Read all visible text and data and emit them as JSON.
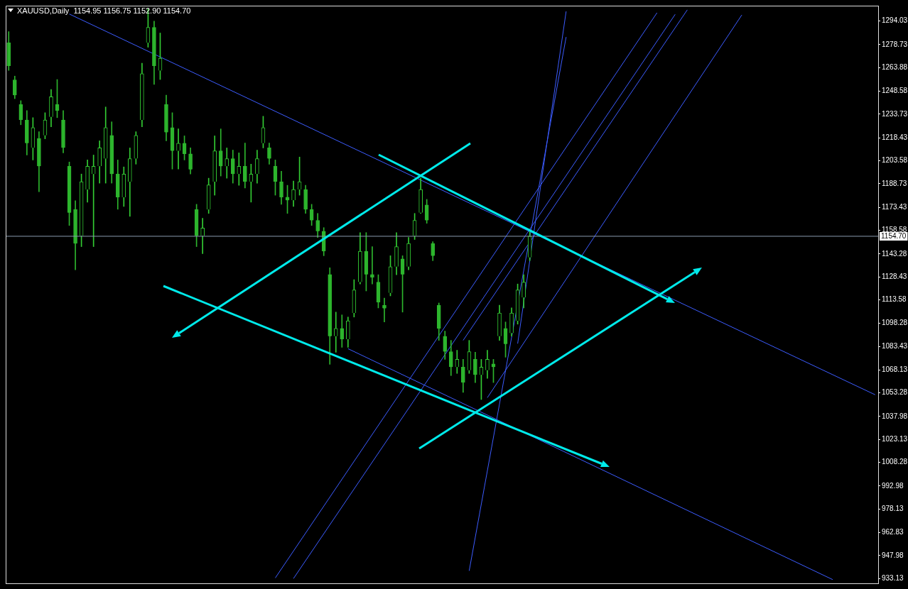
{
  "chart_data": {
    "type": "candlestick",
    "title": "XAUUSD,Daily  1154.95 1156.75 1152.90 1154.70",
    "colors": [
      "#2db52d",
      "#2db52d",
      "#2db52d",
      "#2db52d",
      "#33cc33",
      "#2db52d",
      "#33cc33",
      "#33cc33",
      "#2db52d",
      "#2db52d",
      "#2db52d",
      "#2db52d",
      "#33cc33",
      "#33cc33",
      "#33cc33",
      "#33cc33",
      "#33cc33",
      "#2db52d",
      "#2db52d",
      "#33cc33",
      "#33cc33",
      "#33cc33",
      "#33cc33",
      "#33cc33",
      "#2db52d",
      "#33cc33",
      "#2db52d",
      "#2db52d",
      "#33cc33",
      "#2db52d",
      "#2db52d",
      "#2db52d",
      "#33cc33",
      "#33cc33",
      "#33cc33",
      "#2db52d",
      "#33cc33",
      "#2db52d",
      "#33cc33",
      "#2db52d",
      "#33cc33",
      "#33cc33",
      "#33cc33",
      "#2db52d",
      "#2db52d",
      "#2db52d",
      "#2db52d",
      "#33cc33",
      "#33cc33",
      "#2db52d",
      "#2db52d",
      "#2db52d",
      "#2db52d",
      "#2db52d",
      "#33cc33",
      "#2db52d",
      "#33cc33",
      "#33cc33",
      "#33cc33",
      "#2db52d",
      "#2db52d",
      "#2db52d",
      "#2db52d",
      "#33cc33",
      "#33cc33",
      "#2db52d",
      "#33cc33",
      "#33cc33",
      "#33cc33",
      "#2db52d",
      "#2db52d",
      "#2db52d",
      "#2db52d",
      "#2db52d",
      "#33cc33",
      "#2db52d",
      "#33cc33",
      "#2db52d",
      "#33cc33",
      "#33cc33",
      "#2db52d",
      "#33cc33",
      "#2db52d",
      "#33cc33",
      "#33cc33",
      "#33cc33",
      "#33cc33",
      null,
      null,
      null,
      null,
      null,
      null,
      null,
      null,
      null,
      null,
      null,
      null,
      null,
      null,
      null,
      null,
      null,
      null,
      null,
      null,
      null,
      null,
      null,
      null,
      null,
      null,
      null,
      null,
      null,
      null,
      null,
      null,
      null,
      null,
      null,
      null,
      null,
      null,
      null,
      null,
      null,
      null,
      null,
      null,
      null,
      null,
      null,
      null,
      null,
      null,
      null,
      null,
      null,
      null,
      null,
      null,
      null
    ],
    "tick_labels": "y",
    "categories": [
      null,
      null,
      null,
      null,
      null,
      null,
      null,
      null,
      null,
      null,
      null,
      null,
      null,
      null,
      null,
      null,
      null,
      null,
      null,
      null,
      null,
      null,
      null,
      null,
      null,
      null,
      null,
      null,
      null,
      null,
      null,
      null,
      null,
      null,
      null,
      null,
      null,
      null,
      null,
      null,
      null,
      null,
      null,
      null,
      null,
      null,
      null,
      null,
      null,
      null,
      null,
      null,
      null,
      null,
      null,
      null,
      null,
      null,
      null,
      null,
      null,
      null,
      null,
      null,
      null,
      null,
      null,
      null,
      null,
      null,
      null,
      null,
      null,
      null,
      null,
      null,
      null,
      null,
      null,
      null,
      null,
      null,
      null,
      null,
      null,
      null,
      null,
      null,
      null,
      null,
      null,
      null,
      null,
      null,
      null,
      null,
      null,
      null,
      null,
      null,
      null,
      null,
      null,
      null,
      null,
      null,
      null,
      null,
      null,
      null,
      null,
      null,
      null,
      null,
      null,
      null,
      null,
      null,
      null,
      null,
      null,
      null,
      null,
      null,
      null,
      null,
      null,
      null,
      null,
      null,
      null,
      null,
      null,
      null,
      null,
      null,
      null,
      null,
      null,
      null,
      null,
      null,
      null,
      null
    ],
    "ohlc": [
      [
        1280,
        1287.2,
        1262.1,
        1265
      ],
      [
        1256,
        1258.4,
        1243.8,
        1246
      ],
      [
        1240,
        1242.5,
        1226.9,
        1230
      ],
      [
        1230,
        1236.1,
        1207.3,
        1215
      ],
      [
        1212,
        1231.5,
        1204.1,
        1225
      ],
      [
        1218,
        1222.4,
        1183.6,
        1200
      ],
      [
        1220,
        1234.7,
        1217.8,
        1230
      ],
      [
        1232,
        1249.8,
        1225.6,
        1245
      ],
      [
        1240,
        1256.2,
        1231.5,
        1236
      ],
      [
        1230,
        1236.1,
        1208.7,
        1212
      ],
      [
        1200,
        1202.8,
        1161.7,
        1170
      ],
      [
        1172,
        1177.7,
        1133.0,
        1150
      ],
      [
        1155,
        1195.0,
        1148.0,
        1190
      ],
      [
        1185,
        1204.1,
        1176.8,
        1200
      ],
      [
        1195,
        1207.3,
        1148.0,
        1200
      ],
      [
        1200,
        1216.5,
        1189.1,
        1212
      ],
      [
        1205,
        1238.4,
        1189.1,
        1225
      ],
      [
        1220,
        1228.8,
        1189.1,
        1195
      ],
      [
        1195,
        1204.1,
        1172.2,
        1180
      ],
      [
        1180,
        1199.6,
        1174.0,
        1195
      ],
      [
        1190,
        1211.9,
        1167.6,
        1205
      ],
      [
        1205,
        1222.4,
        1201.4,
        1220
      ],
      [
        1230,
        1266.7,
        1225.6,
        1260
      ],
      [
        1280,
        1302,
        1277.1,
        1290
      ],
      [
        1290,
        1294.0,
        1253.0,
        1265
      ],
      [
        1262,
        1286.3,
        1256.2,
        1270
      ],
      [
        1240,
        1246.1,
        1216.5,
        1222
      ],
      [
        1225,
        1234.7,
        1198.2,
        1210
      ],
      [
        1210,
        1224.2,
        1198.2,
        1215
      ],
      [
        1215,
        1219.7,
        1204.1,
        1208
      ],
      [
        1208,
        1211.9,
        1195.0,
        1198
      ],
      [
        1172,
        1175.4,
        1148.0,
        1155
      ],
      [
        1155,
        1166.3,
        1143.4,
        1160
      ],
      [
        1172,
        1192.3,
        1169.5,
        1188
      ],
      [
        1190,
        1219.7,
        1181.3,
        1210
      ],
      [
        1210,
        1224.2,
        1193.7,
        1200
      ],
      [
        1200,
        1211.9,
        1192.3,
        1205
      ],
      [
        1205,
        1210.5,
        1189.1,
        1195
      ],
      [
        1195,
        1208.7,
        1187.7,
        1200
      ],
      [
        1200,
        1215.1,
        1185.9,
        1190
      ],
      [
        1190,
        1201.4,
        1176.8,
        1195
      ],
      [
        1195,
        1210.5,
        1189.1,
        1205
      ],
      [
        1215,
        1232.4,
        1211.9,
        1225
      ],
      [
        1212,
        1215.1,
        1201.4,
        1205
      ],
      [
        1200,
        1204.1,
        1181.3,
        1190
      ],
      [
        1190,
        1196.8,
        1175.4,
        1180
      ],
      [
        1180,
        1187.7,
        1169.5,
        1178
      ],
      [
        1178,
        1190.5,
        1174.0,
        1185
      ],
      [
        1185,
        1206.0,
        1181.3,
        1190
      ],
      [
        1185,
        1187.7,
        1169.5,
        1172
      ],
      [
        1172,
        1175.4,
        1161.7,
        1165
      ],
      [
        1165,
        1169.5,
        1153.9,
        1158
      ],
      [
        1158,
        1160.3,
        1142.1,
        1145
      ],
      [
        1130,
        1134.3,
        1071.8,
        1090
      ],
      [
        1090,
        1105.6,
        1079.6,
        1095
      ],
      [
        1095,
        1103.8,
        1082.8,
        1088
      ],
      [
        1088,
        1102.4,
        1082.8,
        1100
      ],
      [
        1105,
        1126.6,
        1102.4,
        1120
      ],
      [
        1125,
        1157.1,
        1123.8,
        1145
      ],
      [
        1145,
        1157.1,
        1119.3,
        1130
      ],
      [
        1130,
        1148.0,
        1123.8,
        1128
      ],
      [
        1125,
        1129.8,
        1108.3,
        1112
      ],
      [
        1110,
        1114.7,
        1099.2,
        1108
      ],
      [
        1118,
        1142.1,
        1116.1,
        1135
      ],
      [
        1135,
        1157.1,
        1129.8,
        1148
      ],
      [
        1140,
        1142.1,
        1105.6,
        1130
      ],
      [
        1135,
        1153.9,
        1133.0,
        1150
      ],
      [
        1155,
        1169.5,
        1152.6,
        1165
      ],
      [
        1170,
        1192.3,
        1169.5,
        1185
      ],
      [
        1175,
        1178.6,
        1163.1,
        1165
      ],
      [
        1150,
        1151.2,
        1138.9,
        1142
      ],
      [
        1110,
        1111.5,
        1087.3,
        1095
      ],
      [
        1090,
        1093.3,
        1075.0,
        1080
      ],
      [
        1080,
        1087.3,
        1064.5,
        1070
      ],
      [
        1070,
        1080.9,
        1065.9,
        1075
      ],
      [
        1070,
        1075.0,
        1053.6,
        1060
      ],
      [
        1068,
        1087.3,
        1065.9,
        1080
      ],
      [
        1075,
        1079.6,
        1060.0,
        1065
      ],
      [
        1065,
        1075.0,
        1049.0,
        1070
      ],
      [
        1068,
        1080.9,
        1062.7,
        1075
      ],
      [
        1072,
        1075.0,
        1060.0,
        1070
      ],
      [
        1090,
        1110.1,
        1087.3,
        1105
      ],
      [
        1095,
        1099.2,
        1076.4,
        1085
      ],
      [
        1092,
        1108.3,
        1090.1,
        1105
      ],
      [
        1100,
        1123.8,
        1097.8,
        1120
      ],
      [
        1115,
        1129.8,
        1108.3,
        1125
      ],
      [
        1141,
        1158.5,
        1138.9,
        1154.7
      ],
      null,
      null,
      null,
      null,
      null,
      null,
      null,
      null,
      null,
      null,
      null,
      null,
      null,
      null,
      null,
      null,
      null,
      null,
      null,
      null,
      null,
      null,
      null,
      null,
      null,
      null,
      null,
      null,
      null,
      null,
      null,
      null,
      null,
      null,
      null,
      null,
      null,
      null,
      null,
      null,
      null,
      null,
      null,
      null,
      null,
      null,
      null,
      null,
      null,
      null,
      null,
      null,
      null,
      null,
      null,
      null,
      null
    ],
    "series": [
      {
        "type": "line",
        "color": "#3c5cff",
        "values": [
          null,
          null,
          null,
          null,
          null,
          null,
          null,
          null,
          null,
          null,
          1298.6,
          null,
          null,
          null,
          null,
          null,
          null,
          null,
          null,
          null,
          null,
          null,
          null,
          null,
          null,
          null,
          null,
          null,
          null,
          null,
          null,
          null,
          null,
          null,
          null,
          null,
          null,
          null,
          null,
          null,
          null,
          null,
          null,
          null,
          null,
          null,
          null,
          null,
          null,
          null,
          null,
          null,
          null,
          null,
          null,
          null,
          null,
          null,
          null,
          null,
          null,
          null,
          null,
          null,
          null,
          null,
          null,
          null,
          null,
          null,
          null,
          null,
          null,
          null,
          null,
          null,
          null,
          null,
          null,
          null,
          null,
          null,
          null,
          null,
          null,
          null,
          null,
          null,
          null,
          null,
          null,
          null,
          null,
          null,
          null,
          null,
          null,
          null,
          null,
          null,
          null,
          null,
          null,
          null,
          null,
          null,
          null,
          null,
          null,
          null,
          null,
          null,
          null,
          null,
          null,
          null,
          null,
          null,
          null,
          null,
          null,
          null,
          null,
          null,
          null,
          null,
          null,
          null,
          null,
          null,
          null,
          null,
          null,
          null,
          null,
          null,
          null,
          null,
          null,
          null,
          null,
          null,
          null,
          1052.1
        ]
      },
      {
        "type": "line",
        "color": "#3c5cff",
        "values": [
          null,
          null,
          null,
          null,
          null,
          null,
          null,
          null,
          null,
          null,
          null,
          null,
          null,
          null,
          null,
          null,
          null,
          null,
          null,
          null,
          null,
          null,
          null,
          null,
          null,
          null,
          null,
          null,
          null,
          null,
          null,
          null,
          null,
          null,
          null,
          null,
          null,
          null,
          null,
          null,
          null,
          null,
          null,
          null,
          null,
          null,
          null,
          null,
          null,
          null,
          null,
          null,
          null,
          null,
          null,
          null,
          1081.9,
          null,
          null,
          null,
          null,
          null,
          null,
          null,
          null,
          null,
          null,
          null,
          null,
          null,
          null,
          null,
          null,
          null,
          null,
          null,
          null,
          null,
          null,
          null,
          null,
          null,
          null,
          null,
          null,
          null,
          null,
          null,
          null,
          null,
          null,
          null,
          null,
          null,
          null,
          null,
          null,
          null,
          null,
          null,
          null,
          null,
          null,
          null,
          null,
          null,
          null,
          null,
          null,
          null,
          null,
          null,
          null,
          null,
          null,
          null,
          null,
          null,
          null,
          null,
          null,
          null,
          null,
          null,
          null,
          null,
          null,
          null,
          null,
          null,
          null,
          null,
          null,
          null,
          null,
          null,
          932.4,
          null,
          null,
          null,
          null,
          null,
          null,
          null
        ]
      },
      {
        "type": "line",
        "color": "#3c5cff",
        "values": [
          null,
          null,
          null,
          null,
          null,
          null,
          null,
          null,
          null,
          null,
          null,
          null,
          null,
          null,
          null,
          null,
          null,
          null,
          null,
          null,
          null,
          null,
          null,
          null,
          null,
          null,
          null,
          null,
          null,
          null,
          null,
          null,
          null,
          null,
          null,
          null,
          null,
          null,
          null,
          null,
          null,
          null,
          null,
          null,
          933.5,
          null,
          null,
          null,
          null,
          null,
          null,
          null,
          null,
          null,
          null,
          null,
          null,
          null,
          null,
          null,
          null,
          null,
          null,
          null,
          null,
          null,
          null,
          null,
          null,
          null,
          null,
          null,
          null,
          null,
          null,
          null,
          null,
          null,
          null,
          null,
          null,
          null,
          null,
          null,
          null,
          null,
          null,
          null,
          null,
          null,
          null,
          null,
          null,
          null,
          null,
          null,
          null,
          null,
          null,
          null,
          null,
          null,
          null,
          null,
          null,
          null,
          null,
          1299.4,
          null,
          null,
          null,
          null,
          null,
          null,
          null,
          null,
          null,
          null,
          null,
          null,
          null,
          null,
          null,
          null,
          null,
          null,
          null,
          null,
          null,
          null,
          null,
          null,
          null,
          null,
          null,
          null,
          null,
          null,
          null,
          null,
          null,
          null,
          null,
          null
        ]
      },
      {
        "type": "line",
        "color": "#3c5cff",
        "values": [
          null,
          null,
          null,
          null,
          null,
          null,
          null,
          null,
          null,
          null,
          null,
          null,
          null,
          null,
          null,
          null,
          null,
          null,
          null,
          null,
          null,
          null,
          null,
          null,
          null,
          null,
          null,
          null,
          null,
          null,
          null,
          null,
          null,
          null,
          null,
          null,
          null,
          null,
          null,
          null,
          null,
          null,
          null,
          null,
          null,
          null,
          null,
          933.1,
          null,
          null,
          null,
          null,
          null,
          null,
          null,
          null,
          null,
          null,
          null,
          null,
          null,
          null,
          null,
          null,
          null,
          null,
          null,
          null,
          null,
          null,
          null,
          null,
          null,
          null,
          null,
          null,
          null,
          null,
          null,
          null,
          null,
          null,
          null,
          null,
          null,
          null,
          null,
          null,
          null,
          null,
          null,
          null,
          null,
          null,
          null,
          null,
          null,
          null,
          null,
          null,
          null,
          null,
          null,
          null,
          null,
          null,
          null,
          null,
          null,
          null,
          1298.4,
          null,
          null,
          null,
          null,
          null,
          null,
          null,
          null,
          null,
          null,
          null,
          null,
          null,
          null,
          null,
          null,
          null,
          null,
          null,
          null,
          null,
          null,
          null,
          null,
          null,
          null,
          null,
          null,
          null,
          null,
          null,
          null,
          null
        ]
      },
      {
        "type": "line",
        "color": "#3c5cff",
        "values": [
          null,
          null,
          null,
          null,
          null,
          null,
          null,
          null,
          null,
          null,
          null,
          null,
          null,
          null,
          null,
          null,
          null,
          null,
          null,
          null,
          null,
          null,
          null,
          null,
          null,
          null,
          null,
          null,
          null,
          null,
          null,
          null,
          null,
          null,
          null,
          null,
          null,
          null,
          null,
          null,
          null,
          null,
          null,
          null,
          null,
          null,
          null,
          null,
          null,
          null,
          null,
          null,
          null,
          null,
          null,
          null,
          null,
          null,
          null,
          null,
          null,
          null,
          null,
          null,
          null,
          null,
          null,
          null,
          null,
          null,
          null,
          null,
          null,
          null,
          null,
          1087.3,
          null,
          null,
          null,
          null,
          null,
          null,
          null,
          null,
          null,
          null,
          null,
          null,
          null,
          null,
          null,
          null,
          null,
          null,
          null,
          null,
          null,
          null,
          null,
          null,
          null,
          null,
          null,
          null,
          null,
          null,
          null,
          null,
          null,
          null,
          null,
          null,
          1301.3,
          null,
          null,
          null,
          null,
          null,
          null,
          null,
          null,
          null,
          null,
          null,
          null,
          null,
          null,
          null,
          null,
          null,
          null,
          null,
          null,
          null,
          null,
          null,
          null,
          null,
          null,
          null,
          null,
          null,
          null,
          null
        ]
      },
      {
        "type": "line",
        "color": "#3c5cff",
        "values": [
          null,
          null,
          null,
          null,
          null,
          null,
          null,
          null,
          null,
          null,
          null,
          null,
          null,
          null,
          null,
          null,
          null,
          null,
          null,
          null,
          null,
          null,
          null,
          null,
          null,
          null,
          null,
          null,
          null,
          null,
          null,
          null,
          null,
          null,
          null,
          null,
          null,
          null,
          null,
          null,
          null,
          null,
          null,
          null,
          null,
          null,
          null,
          null,
          null,
          null,
          null,
          null,
          null,
          null,
          null,
          null,
          null,
          null,
          null,
          null,
          null,
          null,
          null,
          null,
          null,
          null,
          null,
          null,
          null,
          null,
          null,
          null,
          null,
          null,
          null,
          null,
          null,
          null,
          null,
          1050.2,
          null,
          null,
          null,
          null,
          null,
          null,
          null,
          null,
          null,
          null,
          null,
          null,
          null,
          null,
          null,
          null,
          null,
          null,
          null,
          null,
          null,
          null,
          null,
          null,
          null,
          null,
          null,
          null,
          null,
          null,
          null,
          null,
          null,
          null,
          null,
          null,
          null,
          null,
          null,
          null,
          null,
          1298.0,
          null,
          null,
          null,
          null,
          null,
          null,
          null,
          null,
          null,
          null,
          null,
          null,
          null,
          null,
          null,
          null,
          null,
          null,
          null,
          null,
          null,
          null
        ]
      },
      {
        "type": "line",
        "color": "#3c5cff",
        "values": [
          null,
          null,
          null,
          null,
          null,
          null,
          null,
          null,
          null,
          null,
          null,
          null,
          null,
          null,
          null,
          null,
          null,
          null,
          null,
          null,
          null,
          null,
          null,
          null,
          null,
          null,
          null,
          null,
          null,
          null,
          null,
          null,
          null,
          null,
          null,
          null,
          null,
          null,
          null,
          null,
          null,
          null,
          null,
          null,
          null,
          null,
          null,
          null,
          null,
          null,
          null,
          null,
          null,
          null,
          null,
          null,
          null,
          null,
          null,
          null,
          null,
          null,
          null,
          null,
          null,
          null,
          null,
          null,
          null,
          null,
          null,
          null,
          null,
          null,
          null,
          null,
          938.1,
          null,
          null,
          null,
          null,
          null,
          null,
          null,
          null,
          null,
          null,
          null,
          null,
          null,
          null,
          null,
          1283.7,
          null,
          null,
          null,
          null,
          null,
          null,
          null,
          null,
          null,
          null,
          null,
          null,
          null,
          null,
          null,
          null,
          null,
          null,
          null,
          null,
          null,
          null,
          null,
          null,
          null,
          null,
          null,
          null,
          null,
          null,
          null,
          null,
          null,
          null,
          null,
          null,
          null,
          null,
          null,
          null,
          null,
          null,
          null,
          null,
          null,
          null,
          null,
          null,
          null,
          null,
          null
        ]
      },
      {
        "type": "line",
        "color": "#3c5cff",
        "values": [
          null,
          null,
          null,
          null,
          null,
          null,
          null,
          null,
          null,
          null,
          null,
          null,
          null,
          null,
          null,
          null,
          null,
          null,
          null,
          null,
          null,
          null,
          null,
          null,
          null,
          null,
          null,
          null,
          null,
          null,
          null,
          null,
          null,
          null,
          null,
          null,
          null,
          null,
          null,
          null,
          null,
          null,
          null,
          null,
          null,
          null,
          null,
          null,
          null,
          null,
          null,
          null,
          null,
          null,
          null,
          null,
          null,
          null,
          null,
          null,
          null,
          null,
          null,
          null,
          null,
          null,
          null,
          null,
          null,
          null,
          null,
          null,
          null,
          null,
          null,
          null,
          null,
          null,
          null,
          null,
          null,
          null,
          null,
          null,
          1085.2,
          null,
          null,
          null,
          null,
          null,
          null,
          null,
          1300.3,
          null,
          null,
          null,
          null,
          null,
          null,
          null,
          null,
          null,
          null,
          null,
          null,
          null,
          null,
          null,
          null,
          null,
          null,
          null,
          null,
          null,
          null,
          null,
          null,
          null,
          null,
          null,
          null,
          null,
          null,
          null,
          null,
          null,
          null,
          null,
          null,
          null,
          null,
          null,
          null,
          null,
          null,
          null,
          null,
          null,
          null,
          null,
          null,
          null,
          null,
          null
        ]
      }
    ],
    "ref_lines": [
      {
        "axis": "y",
        "value": 1154.7,
        "label": "1154.70",
        "color": "#8c9bb0"
      }
    ],
    "ylim": [
      930,
      1304
    ],
    "yticks": [
      933.13,
      947.98,
      962.83,
      978.13,
      992.98,
      1008.28,
      1023.13,
      1037.98,
      1053.28,
      1068.13,
      1083.43,
      1098.28,
      1113.58,
      1128.43,
      1143.28,
      1158.58,
      1173.43,
      1188.73,
      1203.58,
      1218.43,
      1233.73,
      1248.58,
      1263.88,
      1278.73,
      1294.03
    ]
  }
}
